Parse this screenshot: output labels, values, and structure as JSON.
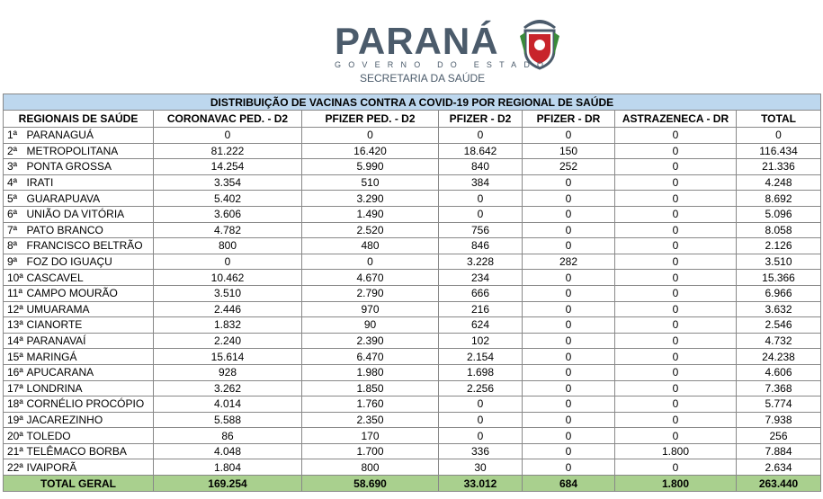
{
  "header": {
    "brand": "PARANÁ",
    "line1": "GOVERNO DO ESTADO",
    "line2": "SECRETARIA DA SAÚDE"
  },
  "table": {
    "title": "DISTRIBUIÇÃO DE VACINAS CONTRA A COVID-19 POR REGIONAL DE SAÚDE",
    "columns": [
      "REGIONAIS DE SAÚDE",
      "CORONAVAC PED. - D2",
      "PFIZER PED. - D2",
      "PFIZER  - D2",
      "PFIZER - DR",
      "ASTRAZENECA - DR",
      "TOTAL"
    ],
    "rows": [
      [
        "1ª",
        "PARANAGUÁ",
        "0",
        "0",
        "0",
        "0",
        "0",
        "0"
      ],
      [
        "2ª",
        "METROPOLITANA",
        "81.222",
        "16.420",
        "18.642",
        "150",
        "0",
        "116.434"
      ],
      [
        "3ª",
        "PONTA GROSSA",
        "14.254",
        "5.990",
        "840",
        "252",
        "0",
        "21.336"
      ],
      [
        "4ª",
        "IRATI",
        "3.354",
        "510",
        "384",
        "0",
        "0",
        "4.248"
      ],
      [
        "5ª",
        "GUARAPUAVA",
        "5.402",
        "3.290",
        "0",
        "0",
        "0",
        "8.692"
      ],
      [
        "6ª",
        "UNIÃO DA VITÓRIA",
        "3.606",
        "1.490",
        "0",
        "0",
        "0",
        "5.096"
      ],
      [
        "7ª",
        "PATO BRANCO",
        "4.782",
        "2.520",
        "756",
        "0",
        "0",
        "8.058"
      ],
      [
        "8ª",
        "FRANCISCO BELTRÃO",
        "800",
        "480",
        "846",
        "0",
        "0",
        "2.126"
      ],
      [
        "9ª",
        "FOZ DO IGUAÇU",
        "0",
        "0",
        "3.228",
        "282",
        "0",
        "3.510"
      ],
      [
        "10ª",
        "CASCAVEL",
        "10.462",
        "4.670",
        "234",
        "0",
        "0",
        "15.366"
      ],
      [
        "11ª",
        "CAMPO MOURÃO",
        "3.510",
        "2.790",
        "666",
        "0",
        "0",
        "6.966"
      ],
      [
        "12ª",
        "UMUARAMA",
        "2.446",
        "970",
        "216",
        "0",
        "0",
        "3.632"
      ],
      [
        "13ª",
        "CIANORTE",
        "1.832",
        "90",
        "624",
        "0",
        "0",
        "2.546"
      ],
      [
        "14ª",
        "PARANAVAÍ",
        "2.240",
        "2.390",
        "102",
        "0",
        "0",
        "4.732"
      ],
      [
        "15ª",
        "MARINGÁ",
        "15.614",
        "6.470",
        "2.154",
        "0",
        "0",
        "24.238"
      ],
      [
        "16ª",
        "APUCARANA",
        "928",
        "1.980",
        "1.698",
        "0",
        "0",
        "4.606"
      ],
      [
        "17ª",
        "LONDRINA",
        "3.262",
        "1.850",
        "2.256",
        "0",
        "0",
        "7.368"
      ],
      [
        "18ª",
        "CORNÉLIO PROCÓPIO",
        "4.014",
        "1.760",
        "0",
        "0",
        "0",
        "5.774"
      ],
      [
        "19ª",
        "JACAREZINHO",
        "5.588",
        "2.350",
        "0",
        "0",
        "0",
        "7.938"
      ],
      [
        "20ª",
        "TOLEDO",
        "86",
        "170",
        "0",
        "0",
        "0",
        "256"
      ],
      [
        "21ª",
        "TELÊMACO BORBA",
        "4.048",
        "1.700",
        "336",
        "0",
        "1.800",
        "7.884"
      ],
      [
        "22ª",
        "IVAIPORÃ",
        "1.804",
        "800",
        "30",
        "0",
        "0",
        "2.634"
      ]
    ],
    "total": [
      "TOTAL GERAL",
      "169.254",
      "58.690",
      "33.012",
      "684",
      "1.800",
      "263.440"
    ]
  }
}
